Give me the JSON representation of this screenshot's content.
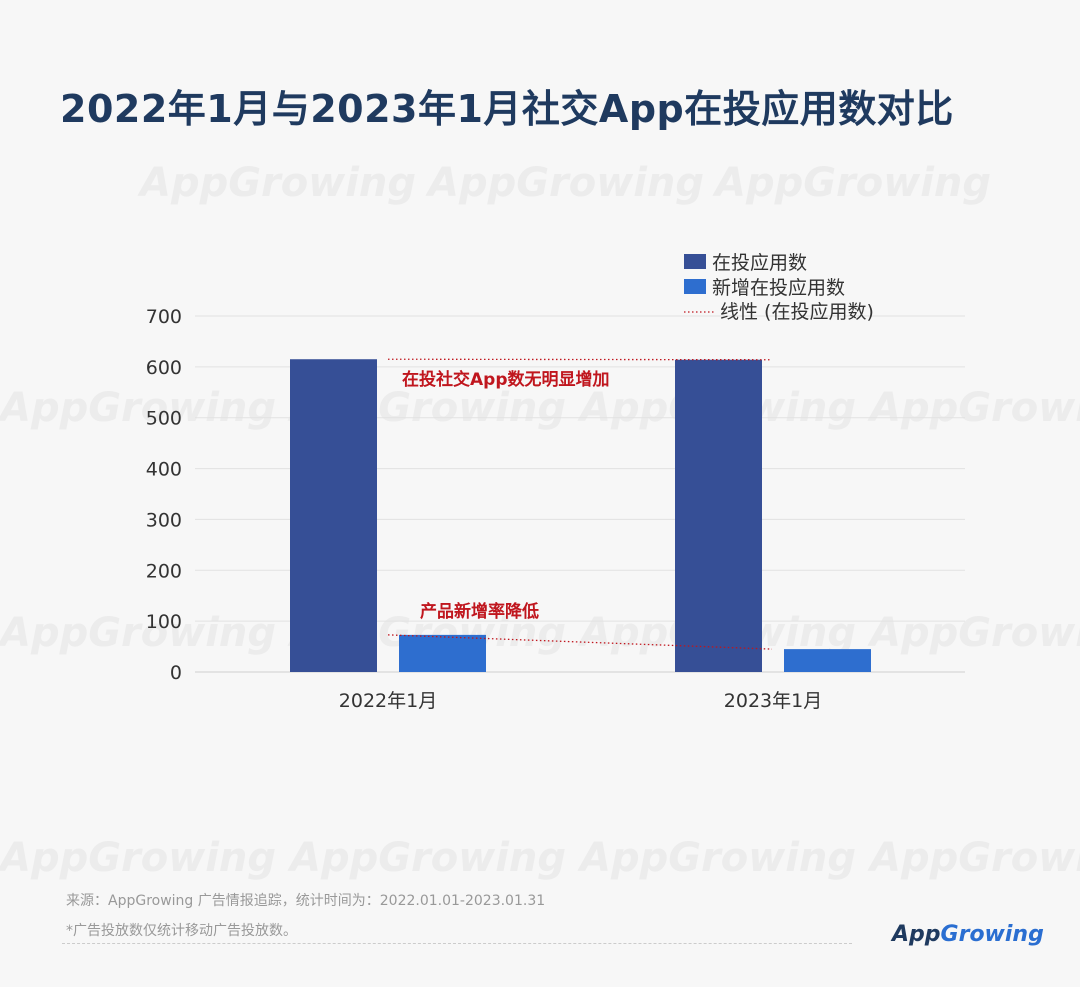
{
  "title": "2022年1月与2023年1月社交App在投应用数对比",
  "watermark_text": "AppGrowing",
  "chart_data": {
    "type": "bar",
    "categories": [
      "2022年1月",
      "2023年1月"
    ],
    "series": [
      {
        "name": "在投应用数",
        "values": [
          615,
          614
        ],
        "color": "#364f96"
      },
      {
        "name": "新增在投应用数",
        "values": [
          73,
          45
        ],
        "color": "#2e6ecf"
      }
    ],
    "trend_legend": "线性 (在投应用数)",
    "trend_color": "#c0161e",
    "yticks": [
      700,
      600,
      500,
      400,
      300,
      200,
      100,
      0
    ],
    "ylim": [
      0,
      700
    ],
    "grid": true,
    "legend_position": "top-right",
    "annotations": [
      {
        "text": "在投社交App数无明显增加"
      },
      {
        "text": "产品新增率降低"
      }
    ]
  },
  "footer": {
    "source": "来源：AppGrowing 广告情报追踪，统计时间为：2022.01.01-2023.01.31",
    "note": "*广告投放数仅统计移动广告投放数。"
  },
  "logo": {
    "part1": "App",
    "part2": "Growing"
  }
}
